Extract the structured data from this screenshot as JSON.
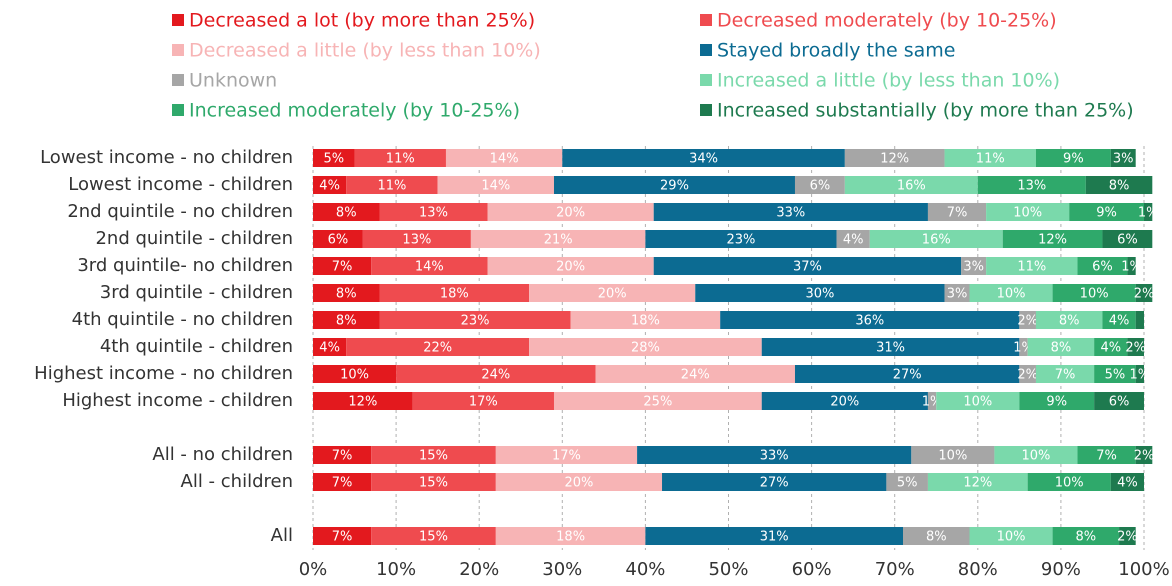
{
  "chart_data": {
    "type": "stacked_bar_horizontal",
    "categories": [
      "Lowest income - no children",
      "Lowest income - children",
      "2nd quintile - no children",
      "2nd quintile - children",
      "3rd quintile- no children",
      "3rd quintile - children",
      "4th quintile - no children",
      "4th quintile - children",
      "Highest income - no children",
      "Highest income - children",
      null,
      "All - no children",
      "All - children",
      null,
      "All"
    ],
    "series": [
      {
        "name": "Decreased a lot (by more than 25%)",
        "color": "#e3191e",
        "values": [
          5,
          4,
          8,
          6,
          7,
          8,
          8,
          4,
          10,
          12,
          null,
          7,
          7,
          null,
          7
        ],
        "value_labels": [
          "5%",
          "4%",
          "8%",
          "6%",
          "7%",
          "8%",
          "8%",
          "4%",
          "10%",
          "12%",
          null,
          "7%",
          "7%",
          null,
          "7%"
        ]
      },
      {
        "name": "Decreased moderately (by 10-25%)",
        "color": "#ef4b4f",
        "values": [
          11,
          11,
          13,
          13,
          14,
          18,
          23,
          22,
          24,
          17,
          null,
          15,
          15,
          null,
          15
        ],
        "value_labels": [
          "11%",
          "11%",
          "13%",
          "13%",
          "14%",
          "18%",
          "23%",
          "22%",
          "24%",
          "17%",
          null,
          "15%",
          "15%",
          null,
          "15%"
        ]
      },
      {
        "name": "Decreased a little (by less than 10%)",
        "color": "#f7b4b5",
        "values": [
          14,
          14,
          20,
          21,
          20,
          20,
          18,
          28,
          24,
          25,
          null,
          17,
          20,
          null,
          18
        ],
        "value_labels": [
          "14%",
          "14%",
          "20%",
          "21%",
          "20%",
          "20%",
          "18%",
          "28%",
          "24%",
          "25%",
          null,
          "17%",
          "20%",
          null,
          "18%"
        ]
      },
      {
        "name": "Stayed broadly the same",
        "color": "#0c6b92",
        "values": [
          34,
          29,
          33,
          23,
          37,
          30,
          36,
          31,
          27,
          20,
          null,
          33,
          27,
          null,
          31
        ],
        "value_labels": [
          "34%",
          "29%",
          "33%",
          "23%",
          "37%",
          "30%",
          "36%",
          "31%",
          "27%",
          "20%",
          null,
          "33%",
          "27%",
          null,
          "31%"
        ]
      },
      {
        "name": "Unknown",
        "color": "#a6a6a6",
        "values": [
          12,
          6,
          7,
          4,
          3,
          3,
          2,
          1,
          2,
          1,
          null,
          10,
          5,
          null,
          8
        ],
        "value_labels": [
          "12%",
          "6%",
          "7%",
          "4%",
          "3%",
          "3%",
          "2%",
          "1%",
          "2%",
          "1%",
          null,
          "10%",
          "5%",
          null,
          "8%"
        ]
      },
      {
        "name": "Increased a little (by less than 10%)",
        "color": "#7ad9ab",
        "values": [
          11,
          16,
          10,
          16,
          11,
          10,
          8,
          8,
          7,
          10,
          null,
          10,
          12,
          null,
          10
        ],
        "value_labels": [
          "11%",
          "16%",
          "10%",
          "16%",
          "11%",
          "10%",
          "8%",
          "8%",
          "7%",
          "10%",
          null,
          "10%",
          "12%",
          null,
          "10%"
        ]
      },
      {
        "name": "Increased moderately (by 10-25%)",
        "color": "#2fa96b",
        "values": [
          9,
          13,
          9,
          12,
          6,
          10,
          4,
          4,
          5,
          9,
          null,
          7,
          10,
          null,
          8
        ],
        "value_labels": [
          "9%",
          "13%",
          "9%",
          "12%",
          "6%",
          "10%",
          "4%",
          "4%",
          "5%",
          "9%",
          null,
          "7%",
          "10%",
          null,
          "8%"
        ]
      },
      {
        "name": "Increased substantially (by more than 25%)",
        "color": "#1e7a4f",
        "values": [
          3,
          8,
          1,
          6,
          1,
          2,
          1,
          2,
          1,
          6,
          null,
          2,
          4,
          null,
          2
        ],
        "value_labels": [
          "3%",
          "8%",
          "1%",
          "6%",
          "1%",
          "2%",
          null,
          "2%",
          "1%",
          "6%",
          null,
          "2%",
          "4%",
          null,
          "2%"
        ]
      }
    ],
    "xlim": [
      0,
      100
    ],
    "xticks": [
      {
        "value": 0,
        "label": "0%"
      },
      {
        "value": 10,
        "label": "10%"
      },
      {
        "value": 20,
        "label": "20%"
      },
      {
        "value": 30,
        "label": "30%"
      },
      {
        "value": 40,
        "label": "40%"
      },
      {
        "value": 50,
        "label": "50%"
      },
      {
        "value": 60,
        "label": "60%"
      },
      {
        "value": 70,
        "label": "70%"
      },
      {
        "value": 80,
        "label": "80%"
      },
      {
        "value": 90,
        "label": "90%"
      },
      {
        "value": 100,
        "label": "100%"
      }
    ],
    "grid": true
  }
}
